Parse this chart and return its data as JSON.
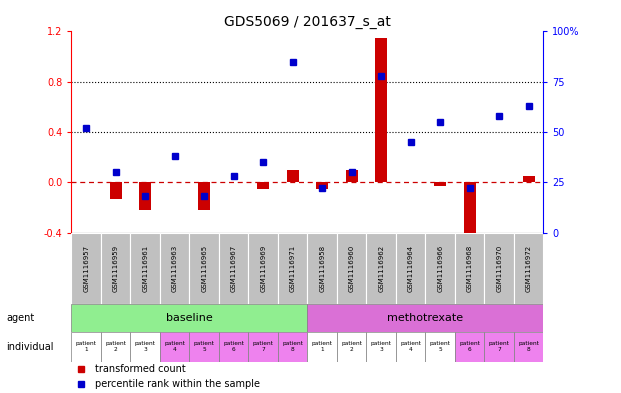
{
  "title": "GDS5069 / 201637_s_at",
  "samples": [
    "GSM1116957",
    "GSM1116959",
    "GSM1116961",
    "GSM1116963",
    "GSM1116965",
    "GSM1116967",
    "GSM1116969",
    "GSM1116971",
    "GSM1116958",
    "GSM1116960",
    "GSM1116962",
    "GSM1116964",
    "GSM1116966",
    "GSM1116968",
    "GSM1116970",
    "GSM1116972"
  ],
  "red_values": [
    0.0,
    -0.13,
    -0.22,
    0.0,
    -0.22,
    0.0,
    -0.05,
    0.1,
    -0.05,
    0.1,
    1.15,
    0.0,
    -0.03,
    -0.42,
    0.0,
    0.05
  ],
  "blue_values": [
    52,
    30,
    18,
    38,
    18,
    28,
    35,
    85,
    22,
    30,
    78,
    45,
    55,
    22,
    58,
    63
  ],
  "ylim_left": [
    -0.4,
    1.2
  ],
  "ylim_right": [
    0,
    100
  ],
  "yticks_left": [
    -0.4,
    0.0,
    0.4,
    0.8,
    1.2
  ],
  "yticks_right": [
    0,
    25,
    50,
    75,
    100
  ],
  "hlines": [
    0.4,
    0.8
  ],
  "agent_groups": [
    {
      "label": "baseline",
      "start": 0,
      "end": 7,
      "color": "#90EE90"
    },
    {
      "label": "methotrexate",
      "start": 8,
      "end": 15,
      "color": "#DA70D6"
    }
  ],
  "patient_labels": [
    "patient\n1",
    "patient\n2",
    "patient\n3",
    "patient\n4",
    "patient\n5",
    "patient\n6",
    "patient\n7",
    "patient\n8",
    "patient\n1",
    "patient\n2",
    "patient\n3",
    "patient\n4",
    "patient\n5",
    "patient\n6",
    "patient\n7",
    "patient\n8"
  ],
  "patient_colors": [
    "white",
    "white",
    "white",
    "#EE82EE",
    "#EE82EE",
    "#EE82EE",
    "#EE82EE",
    "#EE82EE",
    "white",
    "white",
    "white",
    "white",
    "white",
    "#EE82EE",
    "#EE82EE",
    "#EE82EE"
  ],
  "bar_color": "#CC0000",
  "dot_color": "#0000CC",
  "zero_line_color": "#CC0000",
  "dotted_line_color": "black",
  "sample_bg_color": "#C0C0C0",
  "background_color": "white",
  "legend_red": "transformed count",
  "legend_blue": "percentile rank within the sample",
  "agent_label": "agent",
  "individual_label": "individual",
  "bar_width": 0.4
}
